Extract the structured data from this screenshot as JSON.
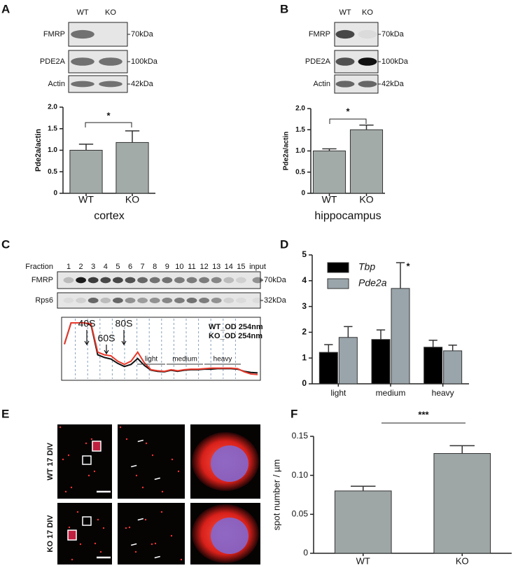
{
  "panel_labels": [
    "A",
    "B",
    "C",
    "D",
    "E",
    "F"
  ],
  "blot_A": {
    "lanes": [
      "WT",
      "KO"
    ],
    "rows": [
      {
        "name": "FMRP",
        "size": "70kDa"
      },
      {
        "name": "PDE2A",
        "size": "100kDa"
      },
      {
        "name": "Actin",
        "size": "42kDa"
      }
    ]
  },
  "blot_B": {
    "lanes": [
      "WT",
      "KO"
    ],
    "rows": [
      {
        "name": "FMRP",
        "size": "70kDa"
      },
      {
        "name": "PDE2A",
        "size": "100kDa"
      },
      {
        "name": "Actin",
        "size": "42kDa"
      }
    ]
  },
  "blot_C": {
    "title": "Fraction",
    "lanes": [
      "1",
      "2",
      "3",
      "4",
      "5",
      "6",
      "7",
      "8",
      "9",
      "10",
      "11",
      "12",
      "13",
      "14",
      "15",
      "input"
    ],
    "rows": [
      {
        "name": "FMRP",
        "size": "70kDa"
      },
      {
        "name": "Rps6",
        "size": "32kDa"
      }
    ]
  },
  "images_E": {
    "rows": [
      "WT 17 DIV",
      "KO 17 DIV"
    ]
  },
  "chart_data": [
    {
      "type": "bar",
      "categories": [
        "WT",
        "KO"
      ],
      "values": [
        1.0,
        1.18
      ],
      "errors": [
        0.14,
        0.27
      ],
      "color": "#a3aba8",
      "ylabel": "Pde2a/actin",
      "xlabel": "cortex",
      "annotation": "*",
      "ylim": [
        0,
        2
      ],
      "yticks": [
        0,
        0.5,
        {
          "value": 1,
          "label": "1.0"
        },
        1.5,
        {
          "value": 2,
          "label": "2.0"
        }
      ]
    },
    {
      "type": "bar",
      "categories": [
        "WT",
        "KO"
      ],
      "values": [
        1.0,
        1.5
      ],
      "errors": [
        0.05,
        0.11
      ],
      "color": "#a3aba8",
      "ylabel": "Pde2a/actin",
      "xlabel": "hippocampus",
      "annotation": "*",
      "ylim": [
        0,
        2
      ],
      "yticks": [
        0,
        0.5,
        {
          "value": 1,
          "label": "1.0"
        },
        1.5,
        {
          "value": 2,
          "label": "2.0"
        }
      ]
    },
    {
      "type": "line",
      "series": [
        {
          "name": "WT_OD 254nm",
          "color": "#111111",
          "values": [
            60,
            100,
            100,
            100,
            96,
            40,
            35,
            32,
            24,
            18,
            22,
            33,
            20,
            11,
            9,
            8,
            11,
            9,
            11,
            12,
            12,
            13,
            13,
            14,
            14,
            14,
            13,
            9,
            7,
            6
          ]
        },
        {
          "name": "KO_OD 254nm",
          "color": "#e8392b",
          "values": [
            60,
            100,
            100,
            100,
            98,
            45,
            40,
            38,
            28,
            22,
            28,
            45,
            25,
            12,
            10,
            9,
            12,
            10,
            12,
            13,
            13,
            14,
            15,
            15,
            15,
            15,
            14,
            8,
            4,
            3
          ]
        }
      ],
      "annotations": [
        "40S",
        "60S",
        "80S"
      ],
      "regions": [
        "light",
        "medium",
        "heavy"
      ]
    },
    {
      "type": "bar",
      "categories": [
        "light",
        "medium",
        "heavy"
      ],
      "annotation": "*",
      "ylim": [
        0,
        5
      ],
      "yticks": [
        0,
        1,
        2,
        3,
        4,
        5
      ],
      "series": [
        {
          "name": "Tbp",
          "color": "#000000",
          "values": [
            1.22,
            1.72,
            1.42
          ],
          "errors": [
            0.3,
            0.37,
            0.27
          ]
        },
        {
          "name": "Pde2a",
          "color": "#9aa5ab",
          "values": [
            1.8,
            3.7,
            1.28
          ],
          "errors": [
            0.42,
            1.0,
            0.22
          ]
        }
      ]
    },
    {
      "type": "bar",
      "categories": [
        "WT",
        "KO"
      ],
      "values": [
        0.08,
        0.128
      ],
      "errors": [
        0.006,
        0.01
      ],
      "color": "#9ea6a6",
      "ylabel": "spot number / µm",
      "annotation": "***",
      "ylim": [
        0,
        0.15
      ],
      "yticks": [
        0,
        0.05,
        {
          "value": 0.1,
          "label": "0.10"
        },
        0.15
      ]
    }
  ]
}
